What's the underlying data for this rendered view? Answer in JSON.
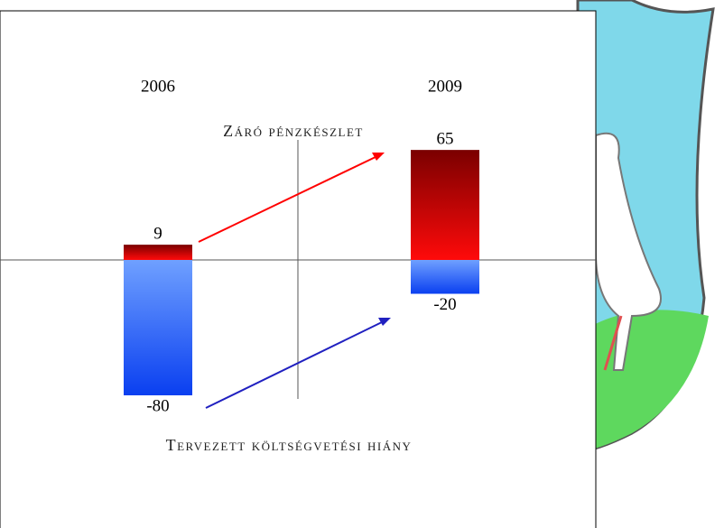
{
  "chart_data": {
    "type": "bar",
    "categories": [
      "2006",
      "2009"
    ],
    "series": [
      {
        "name": "Záró pénzkészlet",
        "color": "#e00000",
        "values": [
          9,
          65
        ]
      },
      {
        "name": "Tervezett költségvetési hiány",
        "color": "#2a5ff5",
        "values": [
          -80,
          -20
        ]
      }
    ]
  }
}
